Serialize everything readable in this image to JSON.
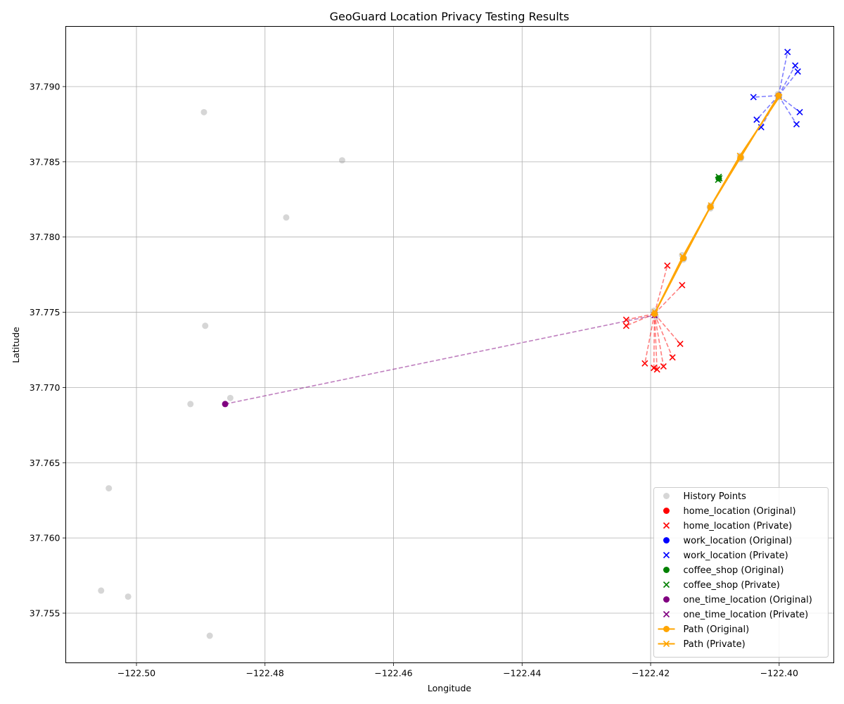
{
  "chart_data": {
    "type": "scatter",
    "title": "GeoGuard Location Privacy Testing Results",
    "xlabel": "Longitude",
    "ylabel": "Latitude",
    "xlim": [
      -122.511,
      -122.3915
    ],
    "ylim": [
      37.7517,
      37.794
    ],
    "xticks": [
      -122.5,
      -122.48,
      -122.46,
      -122.44,
      -122.42,
      -122.4
    ],
    "xtick_labels": [
      "−122.50",
      "−122.48",
      "−122.46",
      "−122.44",
      "−122.42",
      "−122.40"
    ],
    "yticks": [
      37.755,
      37.76,
      37.765,
      37.77,
      37.775,
      37.78,
      37.785,
      37.79
    ],
    "ytick_labels": [
      "37.755",
      "37.760",
      "37.765",
      "37.770",
      "37.775",
      "37.780",
      "37.785",
      "37.790"
    ],
    "grid": true,
    "legend_position": "lower-right",
    "history_points": {
      "name": "History Points",
      "color": "#bfbfbf",
      "points": [
        [
          -122.4895,
          37.7883
        ],
        [
          -122.468,
          37.7851
        ],
        [
          -122.4767,
          37.7813
        ],
        [
          -122.4893,
          37.7741
        ],
        [
          -122.4854,
          37.7693
        ],
        [
          -122.4916,
          37.7689
        ],
        [
          -122.5043,
          37.7633
        ],
        [
          -122.5055,
          37.7565
        ],
        [
          -122.5013,
          37.7561
        ],
        [
          -122.4886,
          37.7535
        ],
        [
          -122.4193,
          37.7749
        ],
        [
          -122.4195,
          37.7751
        ],
        [
          -122.4192,
          37.7747
        ],
        [
          -122.4149,
          37.7785
        ],
        [
          -122.4151,
          37.7788
        ],
        [
          -122.4148,
          37.7786
        ],
        [
          -122.4107,
          37.7819
        ],
        [
          -122.4106,
          37.7821
        ],
        [
          -122.4108,
          37.782
        ],
        [
          -122.406,
          37.7852
        ],
        [
          -122.4061,
          37.7854
        ],
        [
          -122.4059,
          37.7853
        ],
        [
          -122.4001,
          37.7893
        ],
        [
          -122.4002,
          37.7895
        ],
        [
          -122.4,
          37.7894
        ]
      ]
    },
    "series": [
      {
        "name": "home_location (Original)",
        "marker": "o",
        "color": "#ff0000",
        "points": [
          [
            -122.4194,
            37.7749
          ]
        ]
      },
      {
        "name": "home_location (Private)",
        "marker": "x",
        "color": "#ff0000",
        "origin": [
          -122.4194,
          37.7749
        ],
        "points": [
          [
            -122.4174,
            37.7781
          ],
          [
            -122.4151,
            37.7768
          ],
          [
            -122.4238,
            37.7745
          ],
          [
            -122.4238,
            37.7741
          ],
          [
            -122.4154,
            37.7729
          ],
          [
            -122.4166,
            37.772
          ],
          [
            -122.4209,
            37.7716
          ],
          [
            -122.418,
            37.7714
          ],
          [
            -122.4195,
            37.7713
          ],
          [
            -122.419,
            37.7712
          ]
        ]
      },
      {
        "name": "work_location (Original)",
        "marker": "o",
        "color": "#0000ff",
        "points": [
          [
            -122.4001,
            37.7894
          ]
        ]
      },
      {
        "name": "work_location (Private)",
        "marker": "x",
        "color": "#0000ff",
        "origin": [
          -122.4001,
          37.7894
        ],
        "points": [
          [
            -122.3987,
            37.7923
          ],
          [
            -122.3975,
            37.7914
          ],
          [
            -122.3971,
            37.791
          ],
          [
            -122.404,
            37.7893
          ],
          [
            -122.3968,
            37.7883
          ],
          [
            -122.4035,
            37.7878
          ],
          [
            -122.3973,
            37.7875
          ],
          [
            -122.4028,
            37.7873
          ]
        ]
      },
      {
        "name": "coffee_shop (Original)",
        "marker": "o",
        "color": "#008000",
        "points": [
          [
            -122.4094,
            37.7839
          ]
        ]
      },
      {
        "name": "coffee_shop (Private)",
        "marker": "x",
        "color": "#008000",
        "points": [
          [
            -122.4094,
            37.784
          ],
          [
            -122.4095,
            37.7838
          ],
          [
            -122.4093,
            37.7839
          ]
        ]
      },
      {
        "name": "one_time_location (Original)",
        "marker": "o",
        "color": "#800080",
        "points": [
          [
            -122.4862,
            37.7689
          ]
        ]
      },
      {
        "name": "one_time_location (Private)",
        "marker": "x",
        "color": "#800080",
        "origin": [
          -122.4862,
          37.7689
        ],
        "points": [
          [
            -122.4194,
            37.7748
          ]
        ]
      },
      {
        "name": "Path (Original)",
        "marker": "o-line",
        "color": "#ffa500",
        "points": [
          [
            -122.4194,
            37.7749
          ],
          [
            -122.4149,
            37.7786
          ],
          [
            -122.4107,
            37.782
          ],
          [
            -122.406,
            37.7853
          ],
          [
            -122.4001,
            37.7894
          ]
        ]
      },
      {
        "name": "Path (Private)",
        "marker": "x-line",
        "color": "#ffa500",
        "points": [
          [
            -122.4193,
            37.775
          ],
          [
            -122.415,
            37.7787
          ],
          [
            -122.4106,
            37.7821
          ],
          [
            -122.4061,
            37.7854
          ],
          [
            -122.4,
            37.7893
          ]
        ]
      }
    ]
  }
}
